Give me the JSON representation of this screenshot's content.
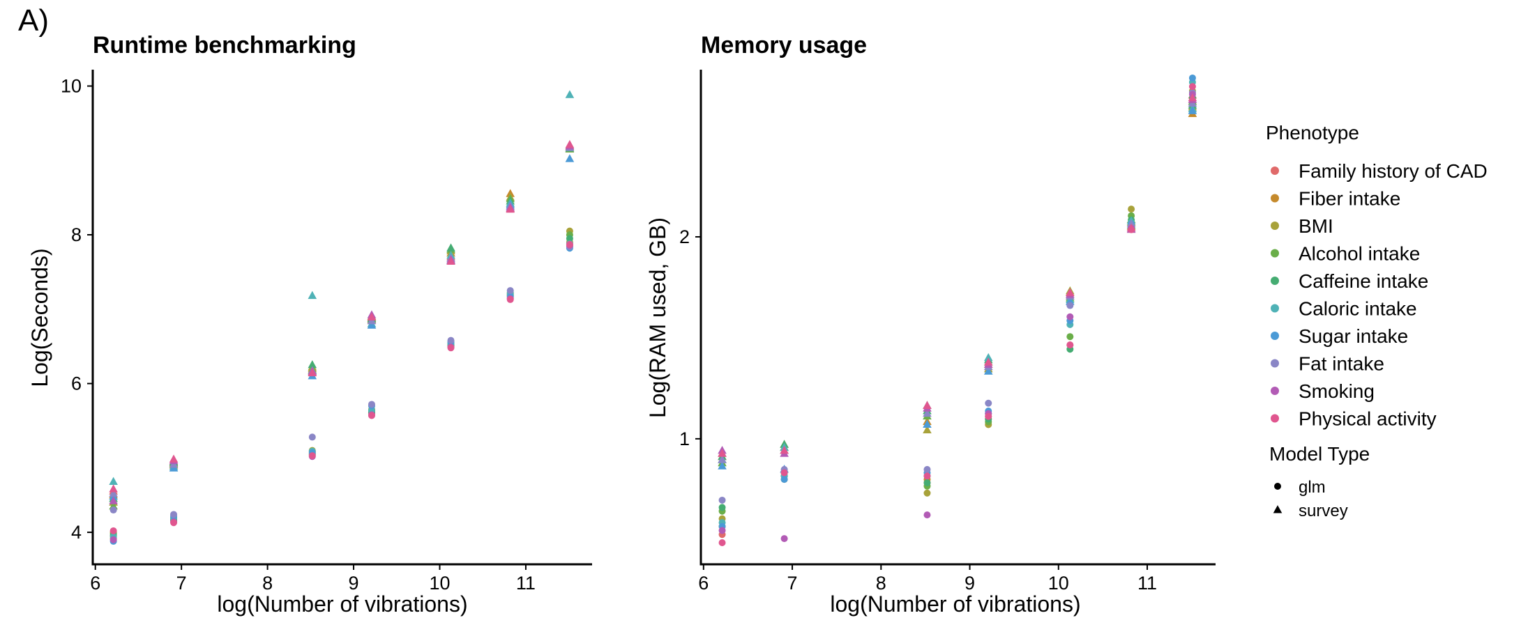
{
  "panel_label": "A)",
  "colors": {
    "Family history of CAD": "#e06a6a",
    "Fiber intake": "#c58a2c",
    "BMI": "#a8a23a",
    "Alcohol intake": "#6aae49",
    "Caffeine intake": "#45ac72",
    "Caloric intake": "#4fb2b6",
    "Sugar intake": "#4b9ad6",
    "Fat intake": "#8a86c6",
    "Smoking": "#b25bb5",
    "Physical activity": "#e0568f"
  },
  "legend": {
    "phenotype_title": "Phenotype",
    "phenotypes": [
      "Family history of CAD",
      "Fiber intake",
      "BMI",
      "Alcohol intake",
      "Caffeine intake",
      "Caloric intake",
      "Sugar intake",
      "Fat intake",
      "Smoking",
      "Physical activity"
    ],
    "model_title": "Model Type",
    "models": [
      {
        "name": "glm",
        "shape": "circle"
      },
      {
        "name": "survey",
        "shape": "triangle"
      }
    ]
  },
  "chart_data": [
    {
      "type": "scatter",
      "title": "Runtime benchmarking",
      "xlabel": "log(Number of vibrations)",
      "ylabel": "Log(Seconds)",
      "xlim": [
        5.97,
        11.77
      ],
      "ylim": [
        3.57,
        10.22
      ],
      "xticks": [
        6,
        7,
        8,
        9,
        10,
        11
      ],
      "yticks": [
        4,
        6,
        8,
        10
      ],
      "x": [
        6.21,
        6.91,
        8.52,
        9.21,
        10.13,
        10.82,
        11.51
      ],
      "series": [
        {
          "name": "Family history of CAD",
          "glm": [
            3.95,
            4.15,
            5.05,
            5.6,
            6.5,
            7.15,
            7.85
          ],
          "survey": [
            4.55,
            4.95,
            6.15,
            6.85,
            7.7,
            8.35,
            9.2
          ]
        },
        {
          "name": "Fiber intake",
          "glm": [
            4.0,
            4.18,
            5.08,
            5.62,
            6.52,
            7.18,
            7.9
          ],
          "survey": [
            4.5,
            4.92,
            6.2,
            6.88,
            7.75,
            8.55,
            9.15
          ]
        },
        {
          "name": "BMI",
          "glm": [
            3.92,
            4.2,
            5.1,
            5.65,
            6.55,
            7.2,
            8.05
          ],
          "survey": [
            4.4,
            4.9,
            6.22,
            6.9,
            7.78,
            8.5,
            9.18
          ]
        },
        {
          "name": "Alcohol intake",
          "glm": [
            3.98,
            4.17,
            5.06,
            5.63,
            6.53,
            7.22,
            8.0
          ],
          "survey": [
            4.35,
            4.93,
            6.18,
            6.86,
            7.8,
            8.48,
            9.15
          ]
        },
        {
          "name": "Caffeine intake",
          "glm": [
            3.96,
            4.16,
            5.04,
            5.61,
            6.51,
            7.19,
            7.95
          ],
          "survey": [
            4.45,
            4.94,
            6.25,
            6.87,
            7.82,
            8.45,
            9.16
          ]
        },
        {
          "name": "Caloric intake",
          "glm": [
            3.94,
            4.19,
            5.09,
            5.64,
            6.54,
            7.21,
            7.88
          ],
          "survey": [
            4.68,
            4.88,
            7.18,
            6.8,
            7.72,
            8.42,
            9.88
          ]
        },
        {
          "name": "Sugar intake",
          "glm": [
            3.88,
            4.22,
            5.07,
            5.7,
            6.56,
            7.17,
            7.82
          ],
          "survey": [
            4.48,
            4.86,
            6.1,
            6.78,
            7.65,
            8.4,
            9.02
          ]
        },
        {
          "name": "Fat intake",
          "glm": [
            4.3,
            4.24,
            5.28,
            5.72,
            6.58,
            7.25,
            7.84
          ],
          "survey": [
            4.52,
            4.91,
            6.17,
            6.84,
            7.68,
            8.38,
            9.17
          ]
        },
        {
          "name": "Smoking",
          "glm": [
            3.9,
            4.14,
            5.02,
            5.58,
            6.49,
            7.14,
            7.86
          ],
          "survey": [
            4.42,
            4.96,
            6.16,
            6.92,
            7.66,
            8.36,
            9.19
          ]
        },
        {
          "name": "Physical activity",
          "glm": [
            4.02,
            4.13,
            5.03,
            5.57,
            6.48,
            7.13,
            7.87
          ],
          "survey": [
            4.58,
            4.98,
            6.14,
            6.89,
            7.64,
            8.34,
            9.21
          ]
        }
      ]
    },
    {
      "type": "scatter",
      "title": "Memory usage",
      "xlabel": "log(Number of vibrations)",
      "ylabel": "Log(RAM used, GB)",
      "ylog": true,
      "xlim": [
        5.97,
        11.77
      ],
      "ylim": [
        0.65,
        3.55
      ],
      "xticks": [
        6,
        7,
        8,
        9,
        10,
        11
      ],
      "yticks": [
        1,
        2
      ],
      "x": [
        6.21,
        6.91,
        8.52,
        9.21,
        10.13,
        10.82,
        11.51
      ],
      "series": [
        {
          "name": "Family history of CAD",
          "glm": [
            0.72,
            0.88,
            0.86,
            1.08,
            1.38,
            2.05,
            3.15
          ],
          "survey": [
            0.94,
            0.97,
            1.12,
            1.28,
            1.63,
            2.05,
            3.25
          ]
        },
        {
          "name": "Fiber intake",
          "glm": [
            0.74,
            0.89,
            0.87,
            1.07,
            1.62,
            2.08,
            3.1
          ],
          "survey": [
            0.95,
            0.96,
            1.06,
            1.29,
            1.65,
            2.07,
            3.05
          ]
        },
        {
          "name": "BMI",
          "glm": [
            0.76,
            0.87,
            0.83,
            1.05,
            1.6,
            2.2,
            3.3
          ],
          "survey": [
            0.93,
            0.98,
            1.03,
            1.27,
            1.66,
            2.1,
            3.12
          ]
        },
        {
          "name": "Alcohol intake",
          "glm": [
            0.78,
            0.88,
            0.85,
            1.06,
            1.42,
            2.15,
            3.2
          ],
          "survey": [
            0.92,
            0.97,
            1.08,
            1.3,
            1.62,
            2.12,
            3.18
          ]
        },
        {
          "name": "Caffeine intake",
          "glm": [
            0.79,
            0.89,
            0.86,
            1.07,
            1.36,
            2.12,
            3.22
          ],
          "survey": [
            0.94,
            0.98,
            1.1,
            1.31,
            1.64,
            2.08,
            3.14
          ]
        },
        {
          "name": "Caloric intake",
          "glm": [
            0.75,
            0.88,
            0.88,
            1.09,
            1.48,
            2.1,
            3.4
          ],
          "survey": [
            0.93,
            0.97,
            1.12,
            1.32,
            1.61,
            2.11,
            3.1
          ]
        },
        {
          "name": "Sugar intake",
          "glm": [
            0.74,
            0.87,
            0.89,
            1.1,
            1.5,
            2.09,
            3.45
          ],
          "survey": [
            0.91,
            0.9,
            1.05,
            1.26,
            1.6,
            2.06,
            3.08
          ]
        },
        {
          "name": "Fat intake",
          "glm": [
            0.81,
            0.9,
            0.9,
            1.13,
            1.58,
            2.07,
            3.28
          ],
          "survey": [
            0.93,
            0.96,
            1.09,
            1.28,
            1.63,
            2.09,
            3.16
          ]
        },
        {
          "name": "Smoking",
          "glm": [
            0.73,
            0.71,
            0.77,
            1.09,
            1.52,
            2.06,
            3.26
          ],
          "survey": [
            0.96,
            0.95,
            1.11,
            1.29,
            1.64,
            2.05,
            3.2
          ]
        },
        {
          "name": "Physical activity",
          "glm": [
            0.7,
            0.89,
            0.88,
            1.08,
            1.38,
            2.05,
            3.35
          ],
          "survey": [
            0.95,
            0.96,
            1.12,
            1.3,
            1.65,
            2.06,
            3.22
          ]
        }
      ]
    }
  ]
}
